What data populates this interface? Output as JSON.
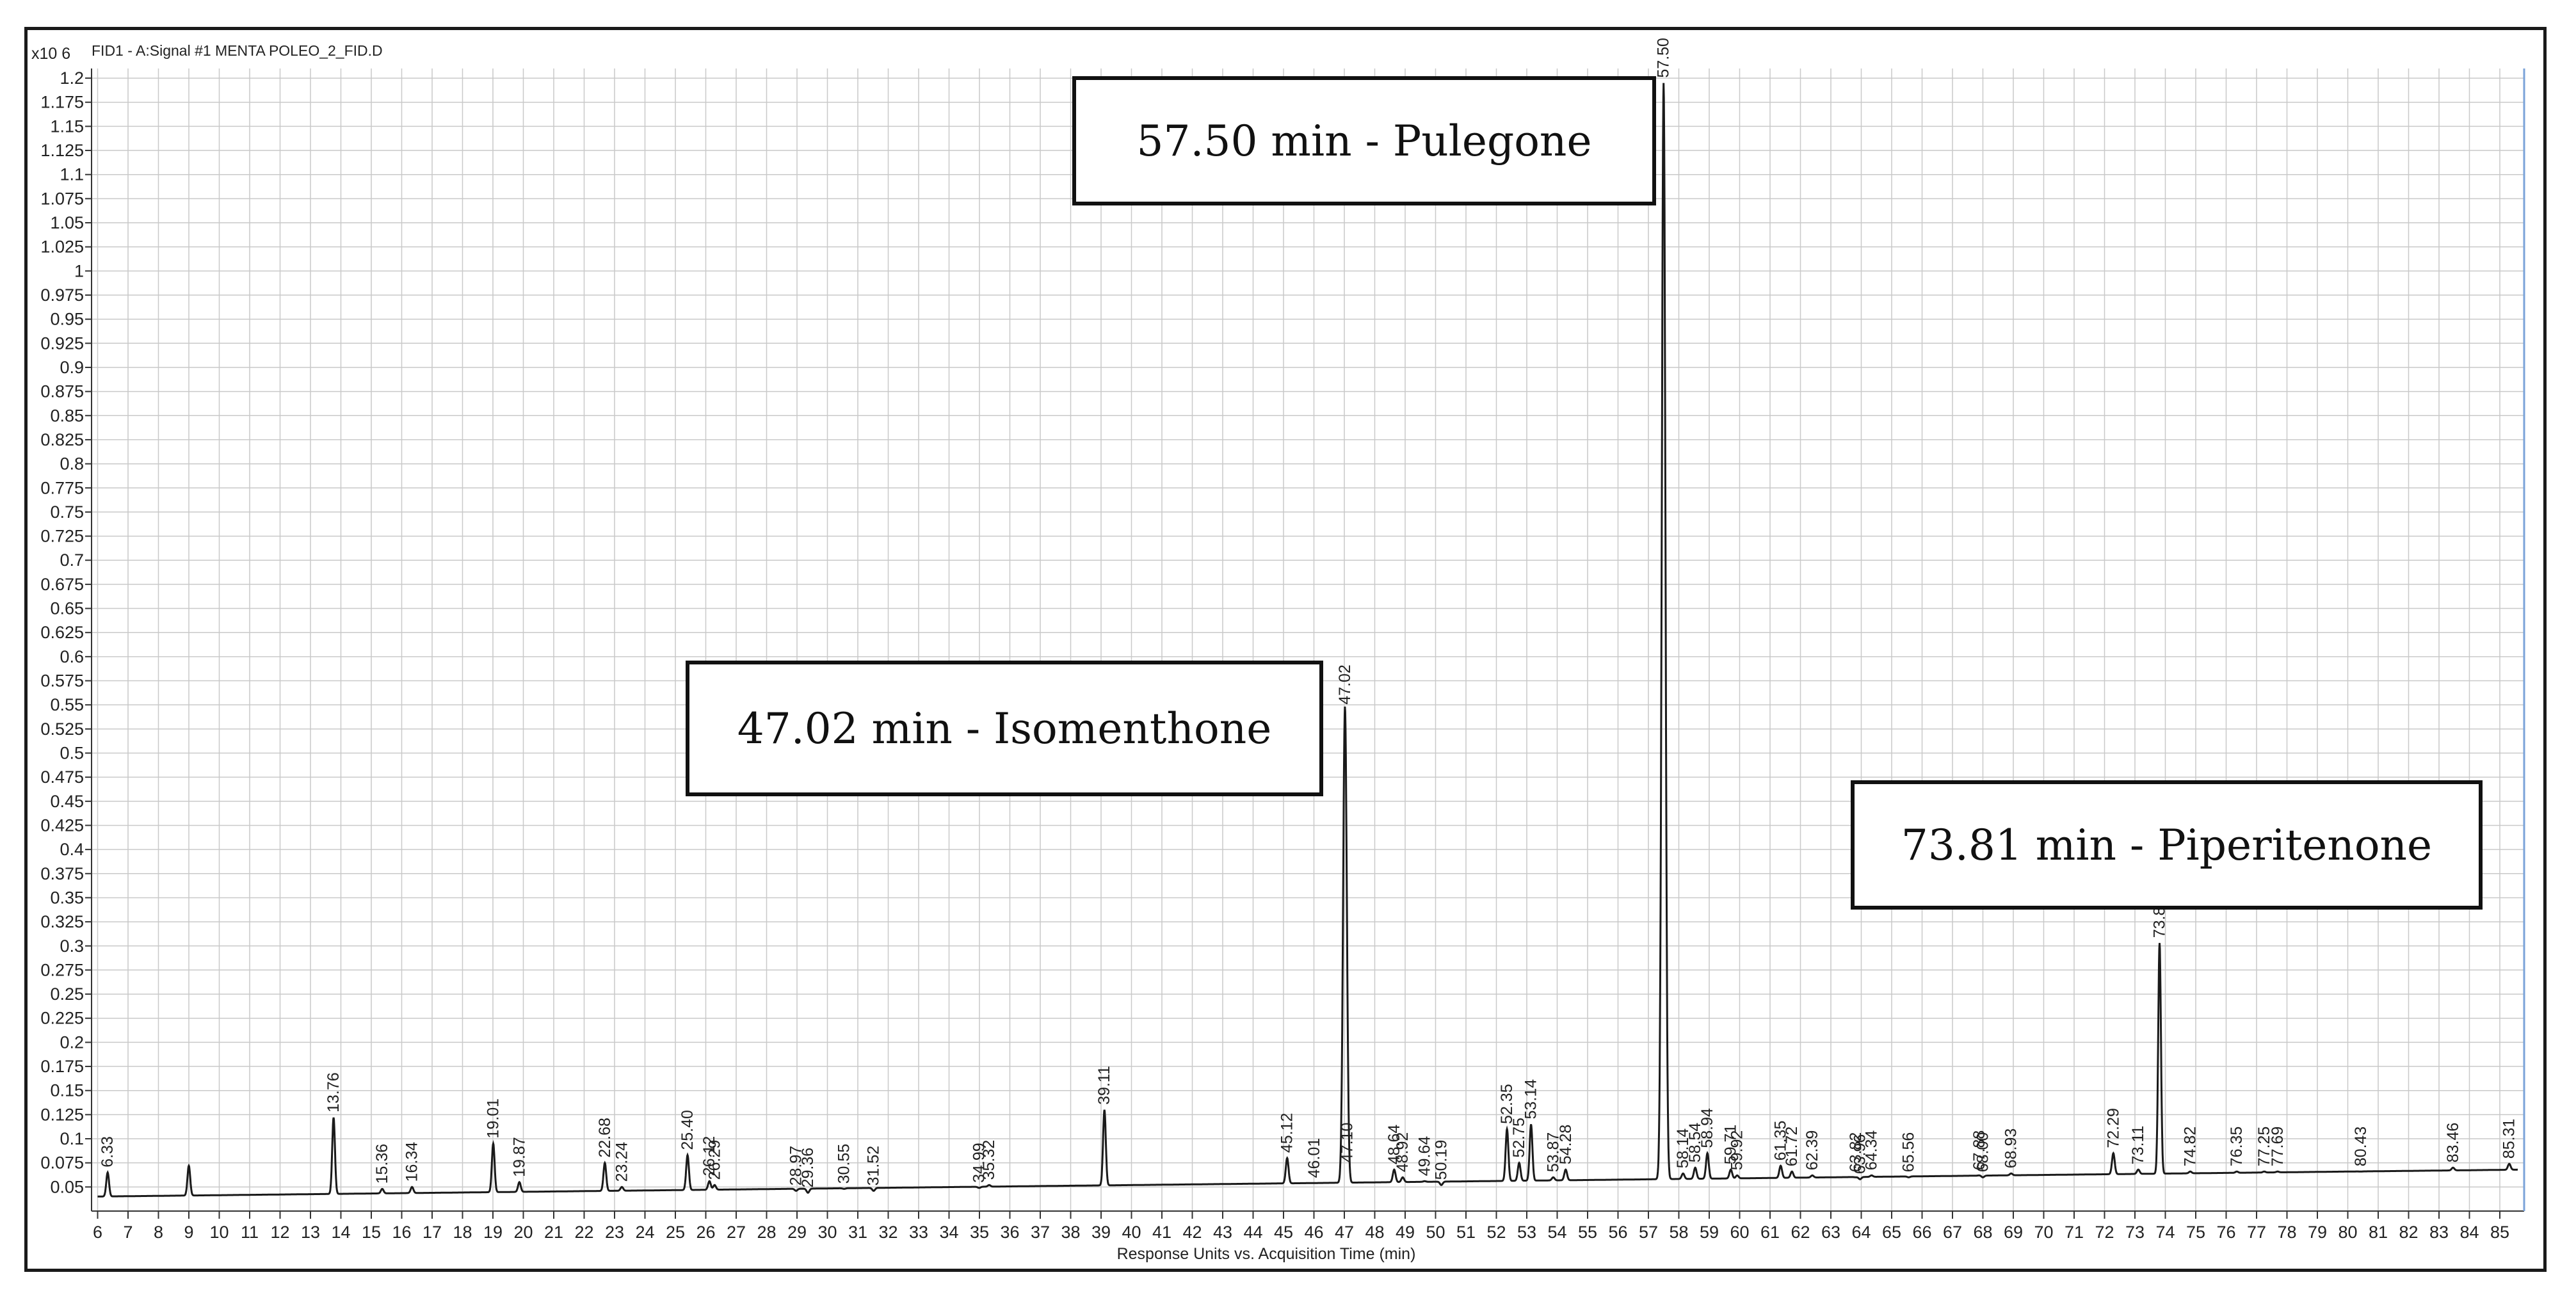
{
  "chart_data": {
    "type": "line",
    "title": "FID1 - A:Signal #1 MENTA POLEO_2_FID.D",
    "xlabel": "Response Units vs. Acquisition Time (min)",
    "ylabel": "",
    "y_scale_label": "x10 6",
    "xlim": [
      5.8,
      85.8
    ],
    "ylim": [
      0.025,
      1.21
    ],
    "x_ticks": [
      "6",
      "7",
      "8",
      "9",
      "10",
      "11",
      "12",
      "13",
      "14",
      "15",
      "16",
      "17",
      "18",
      "19",
      "20",
      "21",
      "22",
      "23",
      "24",
      "25",
      "26",
      "27",
      "28",
      "29",
      "30",
      "31",
      "32",
      "33",
      "34",
      "35",
      "36",
      "37",
      "38",
      "39",
      "40",
      "41",
      "42",
      "43",
      "44",
      "45",
      "46",
      "47",
      "48",
      "49",
      "50",
      "51",
      "52",
      "53",
      "54",
      "55",
      "56",
      "57",
      "58",
      "59",
      "60",
      "61",
      "62",
      "63",
      "64",
      "65",
      "66",
      "67",
      "68",
      "69",
      "70",
      "71",
      "72",
      "73",
      "74",
      "75",
      "76",
      "77",
      "78",
      "79",
      "80",
      "81",
      "82",
      "83",
      "84",
      "85"
    ],
    "y_ticks": [
      "0.05",
      "0.075",
      "0.1",
      "0.125",
      "0.15",
      "0.175",
      "0.2",
      "0.225",
      "0.25",
      "0.275",
      "0.3",
      "0.325",
      "0.35",
      "0.375",
      "0.4",
      "0.425",
      "0.45",
      "0.475",
      "0.5",
      "0.525",
      "0.55",
      "0.575",
      "0.6",
      "0.625",
      "0.65",
      "0.675",
      "0.7",
      "0.725",
      "0.75",
      "0.775",
      "0.8",
      "0.825",
      "0.85",
      "0.875",
      "0.9",
      "0.925",
      "0.95",
      "0.975",
      "1",
      "1.025",
      "1.05",
      "1.075",
      "1.1",
      "1.125",
      "1.15",
      "1.175",
      "1.2"
    ],
    "grid": true,
    "line_color": "#1a1a1a",
    "grid_color": "#c9c9c9",
    "baseline": {
      "start": 0.04,
      "end": 0.068
    },
    "peaks": [
      {
        "rt": 6.33,
        "label": "6.33",
        "height": 0.065
      },
      {
        "rt": 9.0,
        "label": "",
        "height": 0.072
      },
      {
        "rt": 13.76,
        "label": "13.76",
        "height": 0.122
      },
      {
        "rt": 15.36,
        "label": "15.36",
        "height": 0.048
      },
      {
        "rt": 16.34,
        "label": "16.34",
        "height": 0.05
      },
      {
        "rt": 19.01,
        "label": "19.01",
        "height": 0.095
      },
      {
        "rt": 19.87,
        "label": "19.87",
        "height": 0.055
      },
      {
        "rt": 22.68,
        "label": "22.68",
        "height": 0.075
      },
      {
        "rt": 23.24,
        "label": "23.24",
        "height": 0.05
      },
      {
        "rt": 25.4,
        "label": "25.40",
        "height": 0.083
      },
      {
        "rt": 26.12,
        "label": "26.12",
        "height": 0.056
      },
      {
        "rt": 26.29,
        "label": "26.29",
        "height": 0.052
      },
      {
        "rt": 28.97,
        "label": "28.97",
        "height": 0.046
      },
      {
        "rt": 29.36,
        "label": "29.36",
        "height": 0.044
      },
      {
        "rt": 30.55,
        "label": "30.55",
        "height": 0.048
      },
      {
        "rt": 31.52,
        "label": "31.52",
        "height": 0.046
      },
      {
        "rt": 34.99,
        "label": "34.99",
        "height": 0.049
      },
      {
        "rt": 35.32,
        "label": "35.32",
        "height": 0.052
      },
      {
        "rt": 39.11,
        "label": "39.11",
        "height": 0.13
      },
      {
        "rt": 45.12,
        "label": "45.12",
        "height": 0.08
      },
      {
        "rt": 46.01,
        "label": "46.01",
        "height": 0.054
      },
      {
        "rt": 47.02,
        "label": "47.02",
        "height": 0.545
      },
      {
        "rt": 47.1,
        "label": "47.10",
        "height": 0.07
      },
      {
        "rt": 48.64,
        "label": "48.64",
        "height": 0.068
      },
      {
        "rt": 48.92,
        "label": "48.92",
        "height": 0.06
      },
      {
        "rt": 49.64,
        "label": "49.64",
        "height": 0.056
      },
      {
        "rt": 50.19,
        "label": "50.19",
        "height": 0.052
      },
      {
        "rt": 52.35,
        "label": "52.35",
        "height": 0.11
      },
      {
        "rt": 52.75,
        "label": "52.75",
        "height": 0.075
      },
      {
        "rt": 53.14,
        "label": "53.14",
        "height": 0.115
      },
      {
        "rt": 53.87,
        "label": "53.87",
        "height": 0.06
      },
      {
        "rt": 54.28,
        "label": "54.28",
        "height": 0.068
      },
      {
        "rt": 57.5,
        "label": "57.50",
        "height": 1.195
      },
      {
        "rt": 58.14,
        "label": "58.14",
        "height": 0.064
      },
      {
        "rt": 58.54,
        "label": "58.54",
        "height": 0.07
      },
      {
        "rt": 58.94,
        "label": "58.94",
        "height": 0.085
      },
      {
        "rt": 59.71,
        "label": "59.71",
        "height": 0.068
      },
      {
        "rt": 59.92,
        "label": "59.92",
        "height": 0.062
      },
      {
        "rt": 61.35,
        "label": "61.35",
        "height": 0.072
      },
      {
        "rt": 61.72,
        "label": "61.72",
        "height": 0.066
      },
      {
        "rt": 62.39,
        "label": "62.39",
        "height": 0.062
      },
      {
        "rt": 63.82,
        "label": "63.82",
        "height": 0.06
      },
      {
        "rt": 63.96,
        "label": "63.96",
        "height": 0.058
      },
      {
        "rt": 64.34,
        "label": "64.34",
        "height": 0.062
      },
      {
        "rt": 65.56,
        "label": "65.56",
        "height": 0.06
      },
      {
        "rt": 67.88,
        "label": "67.88",
        "height": 0.062
      },
      {
        "rt": 68.0,
        "label": "68.00",
        "height": 0.06
      },
      {
        "rt": 68.93,
        "label": "68.93",
        "height": 0.064
      },
      {
        "rt": 72.29,
        "label": "72.29",
        "height": 0.085
      },
      {
        "rt": 73.11,
        "label": "73.11",
        "height": 0.068
      },
      {
        "rt": 73.81,
        "label": "73.81",
        "height": 0.303
      },
      {
        "rt": 74.82,
        "label": "74.82",
        "height": 0.066
      },
      {
        "rt": 76.35,
        "label": "76.35",
        "height": 0.066
      },
      {
        "rt": 77.25,
        "label": "77.25",
        "height": 0.066
      },
      {
        "rt": 77.69,
        "label": "77.69",
        "height": 0.066
      },
      {
        "rt": 80.43,
        "label": "80.43",
        "height": 0.066
      },
      {
        "rt": 83.46,
        "label": "83.46",
        "height": 0.07
      },
      {
        "rt": 85.31,
        "label": "85.31",
        "height": 0.074
      }
    ],
    "annotations": [
      {
        "text": "57.50 min - Pulegone"
      },
      {
        "text": "47.02 min - Isomenthone"
      },
      {
        "text": "73.81 min - Piperitenone"
      }
    ]
  }
}
